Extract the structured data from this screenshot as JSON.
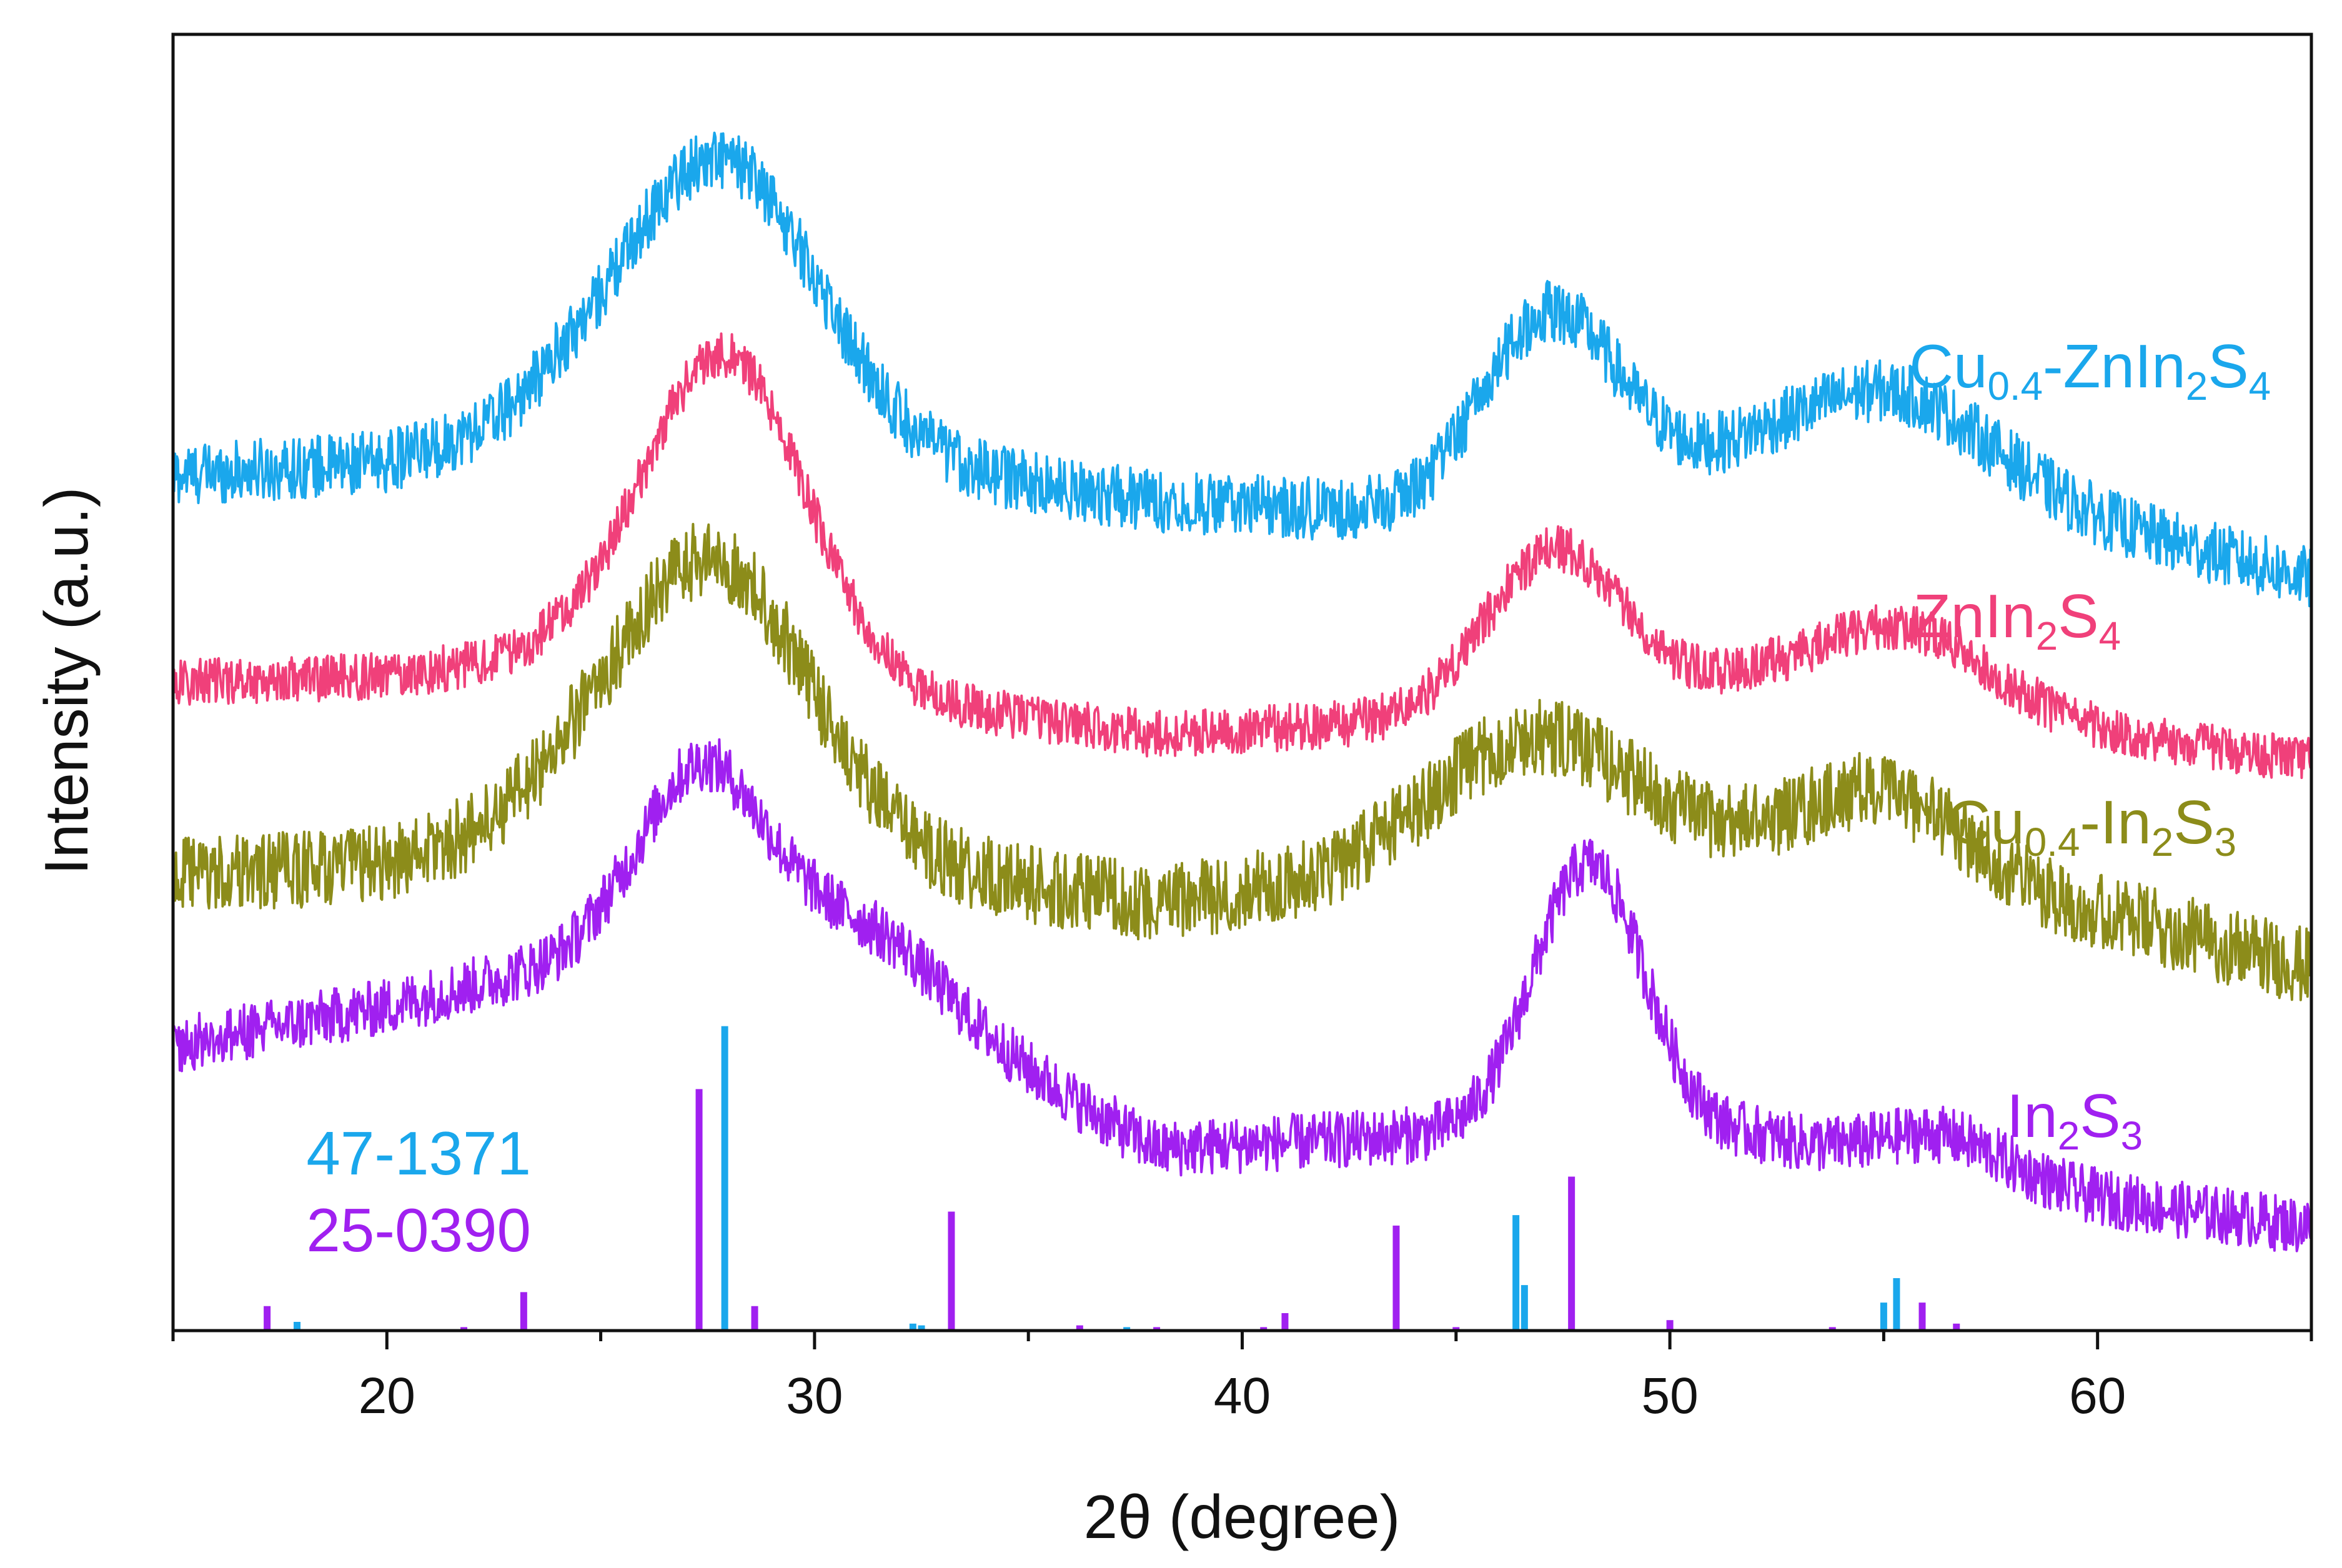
{
  "chart_data": {
    "type": "line",
    "title": "",
    "xlabel": "2θ (degree)",
    "ylabel": "Intensity (a.u.)",
    "xlim": [
      15,
      65
    ],
    "ylim": [
      0,
      100
    ],
    "xticks": [
      20,
      30,
      40,
      50,
      60
    ],
    "ytick_labels_visible": false,
    "grid": false,
    "legend": "none (series labelled inline at right)",
    "colors": {
      "cu_zis": "#1aa7ec",
      "zis": "#f0407a",
      "cu_is": "#8c8c1a",
      "is": "#a020f0",
      "ref_47_1371": "#1aa7ec",
      "ref_25_0390": "#a020f0",
      "axis": "#111111"
    },
    "series": [
      {
        "key": "cu_zis",
        "name": "Cu0.4-ZnIn2S4",
        "label_parts": {
          "p1": "Cu",
          "s1": "0.4",
          "p2": "-ZnIn",
          "s2": "2",
          "p3": "S",
          "s3": "4"
        },
        "baseline": [
          [
            15,
            66
          ],
          [
            20,
            67
          ],
          [
            24,
            70
          ],
          [
            38,
            64
          ],
          [
            44,
            63
          ],
          [
            52,
            67
          ],
          [
            58,
            64
          ],
          [
            65,
            58
          ]
        ],
        "peaks": [
          [
            27.8,
            22,
            2.3
          ],
          [
            47.2,
            14,
            1.6
          ],
          [
            55.2,
            7,
            2.2
          ]
        ],
        "noise": 2.4
      },
      {
        "key": "zis",
        "name": "ZnIn2S4",
        "label_parts": {
          "p1": "ZnIn",
          "s1": "2",
          "p2": "S",
          "s2": "4"
        },
        "baseline": [
          [
            15,
            50
          ],
          [
            20,
            50.5
          ],
          [
            24,
            52
          ],
          [
            38,
            46
          ],
          [
            44,
            47
          ],
          [
            52,
            50
          ],
          [
            58,
            47
          ],
          [
            65,
            44
          ]
        ],
        "peaks": [
          [
            27.9,
            25,
            1.9
          ],
          [
            47.3,
            12,
            1.6
          ],
          [
            55.5,
            6,
            2.0
          ]
        ],
        "noise": 1.8
      },
      {
        "key": "cu_is",
        "name": "Cu0.4-In2S3",
        "label_parts": {
          "p1": "Cu",
          "s1": "0.4",
          "p2": "-In",
          "s2": "2",
          "p3": "S",
          "s3": "3"
        },
        "baseline": [
          [
            15,
            35
          ],
          [
            20,
            36
          ],
          [
            24,
            39
          ],
          [
            38,
            33
          ],
          [
            44,
            35
          ],
          [
            52,
            37
          ],
          [
            58,
            34
          ],
          [
            65,
            28
          ]
        ],
        "peaks": [
          [
            27.6,
            22,
            2.3
          ],
          [
            46.8,
            10,
            2.4
          ],
          [
            55.0,
            6,
            1.8
          ]
        ],
        "noise": 3.0
      },
      {
        "key": "is",
        "name": "In2S3",
        "label_parts": {
          "p1": "In",
          "s1": "2",
          "p2": "S",
          "s2": "3"
        },
        "baseline": [
          [
            15,
            22
          ],
          [
            20,
            25
          ],
          [
            25,
            29
          ],
          [
            32,
            25
          ],
          [
            38,
            14
          ],
          [
            44,
            15
          ],
          [
            52,
            15
          ],
          [
            58,
            11
          ],
          [
            65,
            8
          ]
        ],
        "peaks": [
          [
            27.3,
            14,
            1.4
          ],
          [
            30.5,
            6,
            2.2
          ],
          [
            48.1,
            21,
            1.3
          ],
          [
            56.5,
            3,
            1.5
          ]
        ],
        "noise": 2.2
      }
    ],
    "reference_patterns": [
      {
        "key": "ref_47_1371",
        "name": "47-1371",
        "lines": [
          [
            17.9,
            2.5
          ],
          [
            27.9,
            87
          ],
          [
            32.3,
            2
          ],
          [
            32.5,
            1.5
          ],
          [
            37.3,
            1
          ],
          [
            46.4,
            33
          ],
          [
            46.6,
            13
          ],
          [
            55.0,
            8
          ],
          [
            55.3,
            15
          ]
        ]
      },
      {
        "key": "ref_25_0390",
        "name": "25-0390",
        "lines": [
          [
            17.2,
            7
          ],
          [
            21.8,
            1
          ],
          [
            23.2,
            11
          ],
          [
            27.3,
            69
          ],
          [
            28.6,
            7
          ],
          [
            33.2,
            34
          ],
          [
            36.2,
            1.5
          ],
          [
            38.0,
            1
          ],
          [
            40.5,
            1
          ],
          [
            41.0,
            5
          ],
          [
            43.6,
            30
          ],
          [
            45.0,
            1
          ],
          [
            47.7,
            44
          ],
          [
            50.0,
            3
          ],
          [
            53.8,
            1
          ],
          [
            55.9,
            8
          ],
          [
            56.7,
            2
          ]
        ]
      }
    ]
  }
}
